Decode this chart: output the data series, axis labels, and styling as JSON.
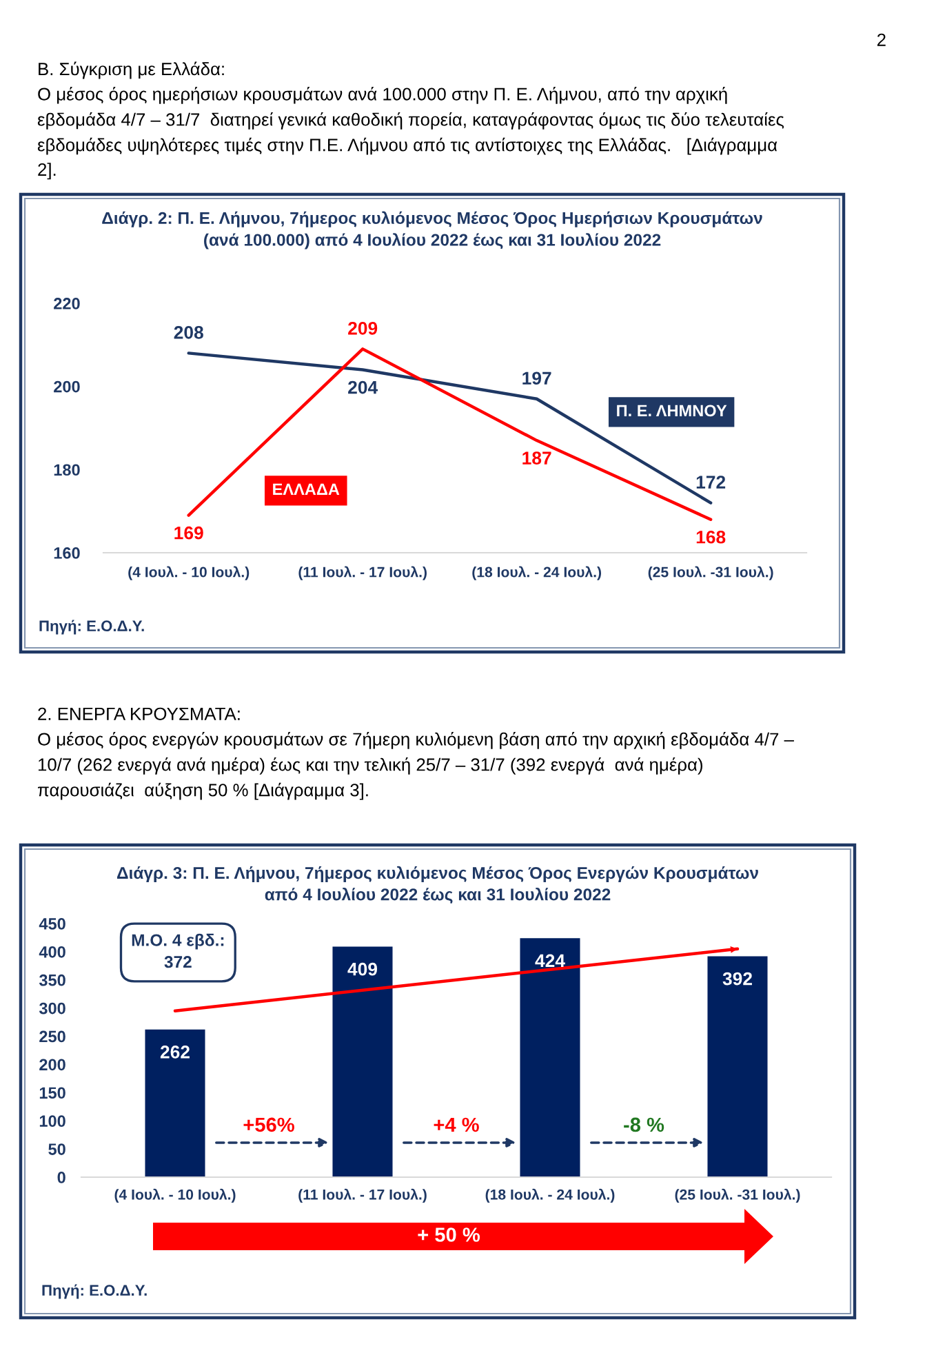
{
  "chart_data": [
    {
      "type": "line",
      "title": "Διάγρ. 2: Π. Ε. Λήμνου, 7ήμερος κυλιόμενος Μέσος Όρος Ημερήσιων Κρουσμάτων\n(ανά 100.000) από 4 Ιουλίου 2022 έως και 31 Ιουλίου 2022",
      "categories": [
        "(4 Ιουλ. - 10 Ιουλ.)",
        "(11 Ιουλ. - 17 Ιουλ.)",
        "(18 Ιουλ. - 24 Ιουλ.)",
        "(25 Ιουλ. -31 Ιουλ.)"
      ],
      "series": [
        {
          "name": "Π. Ε. ΛΗΜΝΟΥ",
          "color": "#1f3864",
          "values": [
            208,
            204,
            197,
            172
          ]
        },
        {
          "name": "ΕΛΛΑΔΑ",
          "color": "#ff0000",
          "values": [
            169,
            209,
            187,
            168
          ]
        }
      ],
      "ylim": [
        160,
        220
      ],
      "yticks": [
        160,
        180,
        200,
        220
      ],
      "data_labels": true,
      "annotations": [
        "2",
        "Β. Σύγκριση με Ελλάδα:",
        "Ο μέσος όρος ημερήσιων κρουσμάτων ανά 100.000 στην Π. Ε. Λήμνου, από την αρχική\nεβδομάδα 4/7 – 31/7  διατηρεί γενικά καθοδική πορεία, καταγράφοντας όμως τις δύο τελευταίες\nεβδομάδες υψηλότερες τιμές στην Π.Ε. Λήμνου από τις αντίστοιχες της Ελλάδας.   [Διάγραμμα\n2].",
        "Πηγή: Ε.Ο.Δ.Υ."
      ]
    },
    {
      "type": "bar",
      "title": "Διάγρ. 3: Π. Ε. Λήμνου, 7ήμερος κυλιόμενος Μέσος Όρος Ενεργών Κρουσμάτων\nαπό 4 Ιουλίου 2022 έως και 31 Ιουλίου 2022",
      "categories": [
        "(4 Ιουλ. - 10 Ιουλ.)",
        "(11 Ιουλ. - 17 Ιουλ.)",
        "(18 Ιουλ. - 24 Ιουλ.)",
        "(25 Ιουλ. -31 Ιουλ.)"
      ],
      "series": [
        {
          "type": "bar",
          "color": "#002060",
          "values": [
            262,
            409,
            424,
            392
          ],
          "value_labels": [
            "262",
            "409",
            "424",
            "392"
          ]
        },
        {
          "type": "line",
          "color": "#ff0000",
          "x": [
            "(4 Ιουλ. - 10 Ιουλ.)",
            "(25 Ιουλ. -31 Ιουλ.)"
          ],
          "values": [
            295,
            405
          ]
        }
      ],
      "ylim": [
        0,
        450
      ],
      "yticks": [
        0,
        50,
        100,
        150,
        200,
        250,
        300,
        350,
        400,
        450
      ],
      "annotations": [
        "2. ΕΝΕΡΓΑ ΚΡΟΥΣΜΑΤΑ:",
        "Ο μέσος όρος ενεργών κρουσμάτων σε 7ήμερη κυλιόμενη βάση από την αρχική εβδομάδα 4/7 –\n10/7 (262 ενεργά ανά ημέρα) έως και την τελική 25/7 – 31/7 (392 ενεργά  ανά ημέρα)\nπαρουσιάζει  αύξηση 50 % [Διάγραμμα 3].",
        "Μ.Ο. 4 εβδ.:\n372",
        "+56%",
        "+4 %",
        "-8 %",
        "+ 50 %",
        "Πηγή: Ε.Ο.Δ.Υ."
      ]
    }
  ]
}
